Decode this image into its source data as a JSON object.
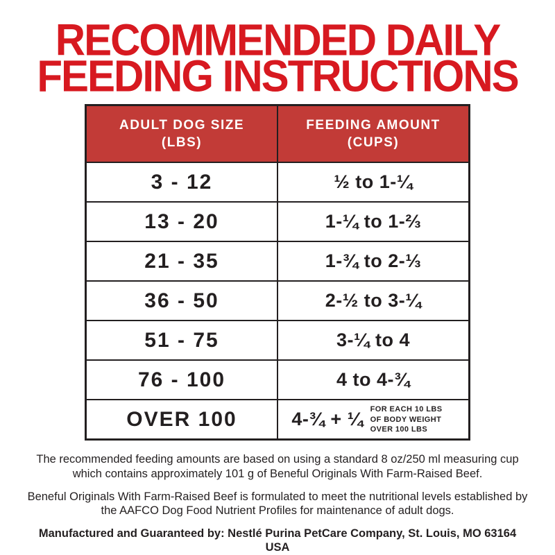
{
  "title": {
    "line1": "RECOMMENDED DAILY",
    "line2": "FEEDING INSTRUCTIONS"
  },
  "table": {
    "headers": [
      {
        "line1": "ADULT DOG SIZE",
        "line2": "(LBS)"
      },
      {
        "line1": "FEEDING AMOUNT",
        "line2": "(CUPS)"
      }
    ],
    "rows": [
      {
        "size": "3 - 12",
        "amount": "½ to 1-¼"
      },
      {
        "size": "13 - 20",
        "amount": "1-¼ to 1-⅔"
      },
      {
        "size": "21 - 35",
        "amount": "1-¾ to 2-⅓"
      },
      {
        "size": "36 - 50",
        "amount": "2-½ to 3-¼"
      },
      {
        "size": "51 - 75",
        "amount": "3-¼ to 4"
      },
      {
        "size": "76 - 100",
        "amount": "4 to 4-¾"
      },
      {
        "size": "OVER 100",
        "amount": "4-¾ + ¼",
        "amount_note": "FOR EACH 10 LBS OF BODY WEIGHT OVER 100 LBS"
      }
    ]
  },
  "footnotes": {
    "note1": "The recommended feeding amounts are based on using a standard 8 oz/250 ml measuring cup which contains approximately 101 g of Beneful Originals With Farm-Raised Beef.",
    "note2": "Beneful Originals With Farm-Raised Beef is formulated to meet the nutritional levels established by the AAFCO Dog Food Nutrient Profiles for maintenance of adult dogs.",
    "manufacturer": "Manufactured and Guaranteed by: Nestlé Purina PetCare Company, St. Louis, MO 63164 USA"
  },
  "colors": {
    "title_red": "#d71920",
    "header_red": "#c23b37",
    "text_black": "#231f20",
    "background": "#ffffff"
  }
}
